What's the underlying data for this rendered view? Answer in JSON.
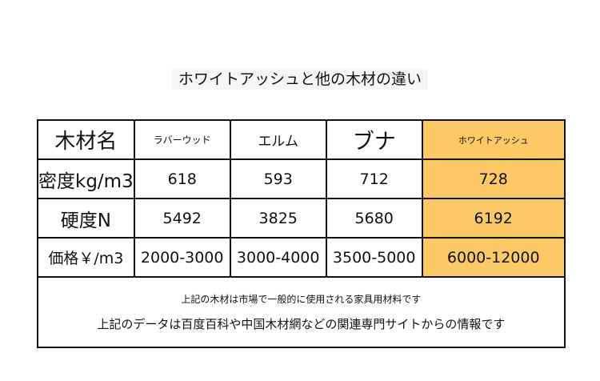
{
  "title": "ホワイトアッシュと他の木材の違い",
  "table": {
    "header": [
      "木材名",
      "ラバーウッド",
      "エルム",
      "ブナ",
      "ホワイトアッシュ"
    ],
    "rows": [
      [
        "密度kg/m3",
        618,
        593,
        712,
        728
      ],
      [
        "硬度N",
        5492,
        3825,
        5680,
        6192
      ],
      [
        "価格￥/m3",
        "2000-3000",
        "3000-4000",
        "3500-5000",
        "6000-12000"
      ]
    ],
    "notes": [
      "上記の木材は市場で一般的に使用される家具用材料です",
      "上記のデータは百度百科や中国木材網などの関連専門サイトからの情報です"
    ]
  }
}
